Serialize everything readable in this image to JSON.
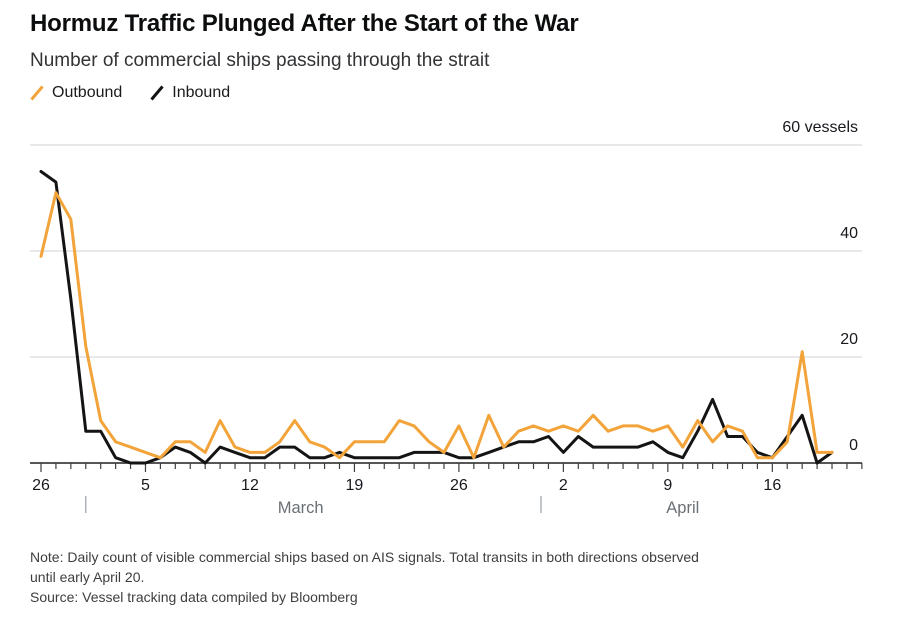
{
  "header": {
    "title": "Hormuz Traffic Plunged After the Start of the War",
    "subtitle": "Number of commercial ships passing through the strait"
  },
  "legend": [
    {
      "label": "Outbound",
      "color": "#F2A43B"
    },
    {
      "label": "Inbound",
      "color": "#141414"
    }
  ],
  "chart_data": {
    "type": "line",
    "title": "Hormuz Traffic Plunged After the Start of the War",
    "subtitle": "Number of commercial ships passing through the strait",
    "x_description": "Daily dates from February 26 to April 20",
    "ylim": [
      0,
      60
    ],
    "grid": "horizontal",
    "y_ticks": [
      {
        "value": 0,
        "label": "0"
      },
      {
        "value": 20,
        "label": "20"
      },
      {
        "value": 40,
        "label": "40"
      },
      {
        "value": 60,
        "label": "60 vessels"
      }
    ],
    "x_tick_labels": [
      {
        "day": 0,
        "label": "26"
      },
      {
        "day": 7,
        "label": "5"
      },
      {
        "day": 14,
        "label": "12"
      },
      {
        "day": 21,
        "label": "19"
      },
      {
        "day": 28,
        "label": "26"
      },
      {
        "day": 35,
        "label": "2"
      },
      {
        "day": 42,
        "label": "9"
      },
      {
        "day": 49,
        "label": "16"
      }
    ],
    "month_labels": [
      {
        "center_day": 17.4,
        "label": "March"
      },
      {
        "center_day": 43.0,
        "label": "April"
      }
    ],
    "month_separator_days": [
      3,
      33.5
    ],
    "series": [
      {
        "name": "Outbound",
        "color": "#F2A43B",
        "values": [
          39,
          51,
          46,
          22,
          8,
          4,
          3,
          2,
          1,
          4,
          4,
          2,
          8,
          3,
          2,
          2,
          4,
          8,
          4,
          3,
          1,
          4,
          4,
          4,
          8,
          7,
          4,
          2,
          7,
          1,
          9,
          3,
          6,
          7,
          6,
          7,
          6,
          9,
          6,
          7,
          7,
          6,
          7,
          3,
          8,
          4,
          7,
          6,
          1,
          1,
          4,
          21,
          2,
          2
        ]
      },
      {
        "name": "Inbound",
        "color": "#141414",
        "values": [
          55,
          53,
          31,
          6,
          6,
          1,
          0,
          0,
          1,
          3,
          2,
          0,
          3,
          2,
          1,
          1,
          3,
          3,
          1,
          1,
          2,
          1,
          1,
          1,
          1,
          2,
          2,
          2,
          1,
          1,
          2,
          3,
          4,
          4,
          5,
          2,
          5,
          3,
          3,
          3,
          3,
          4,
          2,
          1,
          6,
          12,
          5,
          5,
          2,
          1,
          5,
          9,
          0,
          2
        ]
      }
    ]
  },
  "footer": {
    "note_line1": "Note: Daily count of visible commercial ships based on AIS signals. Total transits in both directions observed",
    "note_line2": "until early April 20.",
    "source": "Source: Vessel tracking data compiled by Bloomberg"
  },
  "colors": {
    "outbound": "#F2A43B",
    "inbound": "#141414",
    "gridline": "#d9d9d9",
    "axis": "#3f3f3f",
    "axis_text": "#17191e",
    "month_text": "#6a7076"
  }
}
